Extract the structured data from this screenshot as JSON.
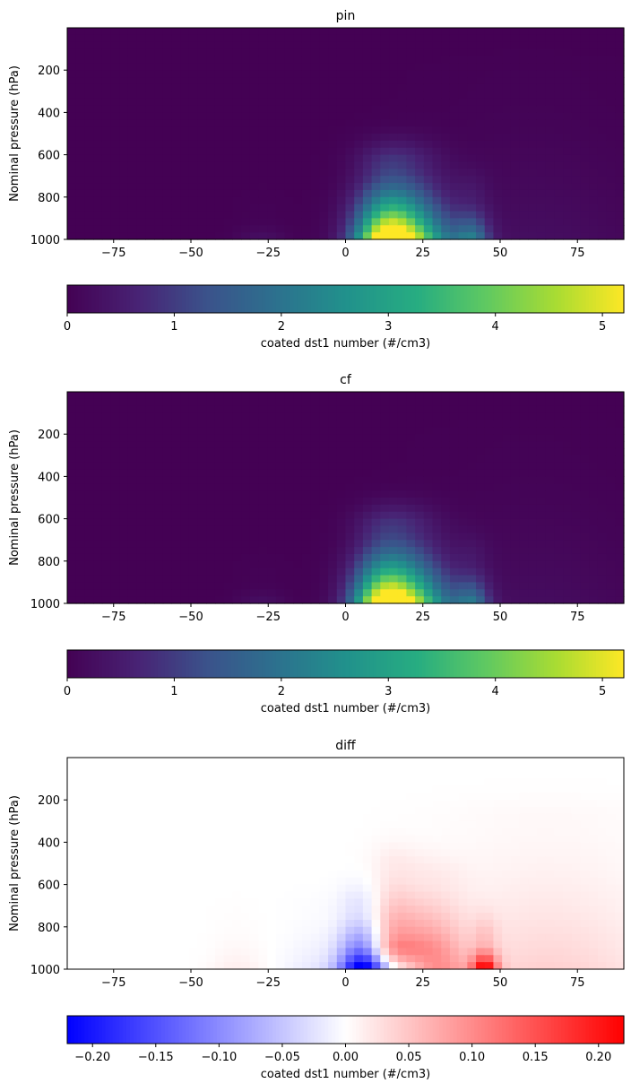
{
  "chart_data": [
    {
      "type": "heatmap",
      "title": "pin",
      "ylabel": "Nominal pressure (hPa)",
      "xlabel": "",
      "xlim": [
        -90,
        90
      ],
      "ylim": [
        1000,
        0
      ],
      "xticks": [
        -75,
        -50,
        -25,
        0,
        25,
        50,
        75
      ],
      "yticks": [
        200,
        400,
        600,
        800,
        1000
      ],
      "colormap": "viridis",
      "colorbar": {
        "label": "coated dst1 number (#/cm3)",
        "range": [
          0,
          5.2
        ],
        "ticks": [
          0,
          1,
          2,
          3,
          4,
          5
        ],
        "orientation": "horizontal"
      },
      "features": [
        {
          "lat": 17,
          "p_top": 650,
          "p_bottom": 1000,
          "lat_width": 9,
          "peak": 5.2
        },
        {
          "lat": 12,
          "p_top": 700,
          "p_bottom": 1000,
          "lat_width": 6,
          "peak": 2.0
        },
        {
          "lat": 41,
          "p_top": 800,
          "p_bottom": 1000,
          "lat_width": 4,
          "peak": 1.8
        },
        {
          "lat": 30,
          "p_top": 750,
          "p_bottom": 1000,
          "lat_width": 8,
          "peak": 0.8
        },
        {
          "lat": -27,
          "p_top": 900,
          "p_bottom": 1000,
          "lat_width": 6,
          "peak": 0.3
        },
        {
          "lat": 60,
          "p_top": 250,
          "p_bottom": 1000,
          "lat_width": 25,
          "peak": 0.25
        }
      ]
    },
    {
      "type": "heatmap",
      "title": "cf",
      "ylabel": "Nominal pressure (hPa)",
      "xlabel": "",
      "xlim": [
        -90,
        90
      ],
      "ylim": [
        1000,
        0
      ],
      "xticks": [
        -75,
        -50,
        -25,
        0,
        25,
        50,
        75
      ],
      "yticks": [
        200,
        400,
        600,
        800,
        1000
      ],
      "colormap": "viridis",
      "colorbar": {
        "label": "coated dst1 number (#/cm3)",
        "range": [
          0,
          5.2
        ],
        "ticks": [
          0,
          1,
          2,
          3,
          4,
          5
        ],
        "orientation": "horizontal"
      },
      "features": [
        {
          "lat": 17,
          "p_top": 650,
          "p_bottom": 1000,
          "lat_width": 9,
          "peak": 5.2
        },
        {
          "lat": 11,
          "p_top": 700,
          "p_bottom": 1000,
          "lat_width": 6,
          "peak": 2.1
        },
        {
          "lat": 41,
          "p_top": 800,
          "p_bottom": 1000,
          "lat_width": 4,
          "peak": 1.7
        },
        {
          "lat": 30,
          "p_top": 750,
          "p_bottom": 1000,
          "lat_width": 8,
          "peak": 0.75
        },
        {
          "lat": -27,
          "p_top": 900,
          "p_bottom": 1000,
          "lat_width": 6,
          "peak": 0.3
        },
        {
          "lat": 60,
          "p_top": 250,
          "p_bottom": 1000,
          "lat_width": 25,
          "peak": 0.22
        }
      ]
    },
    {
      "type": "heatmap",
      "title": "diff",
      "ylabel": "Nominal pressure (hPa)",
      "xlabel": "",
      "xlim": [
        -90,
        90
      ],
      "ylim": [
        1000,
        0
      ],
      "xticks": [
        -75,
        -50,
        -25,
        0,
        25,
        50,
        75
      ],
      "yticks": [
        200,
        400,
        600,
        800,
        1000
      ],
      "colormap": "bwr",
      "colorbar": {
        "label": "coated dst1 number (#/cm3)",
        "range": [
          -0.22,
          0.22
        ],
        "ticks": [
          -0.2,
          -0.15,
          -0.1,
          -0.05,
          0.0,
          0.05,
          0.1,
          0.15,
          0.2
        ],
        "tick_labels": [
          "−0.20",
          "−0.15",
          "−0.10",
          "−0.05",
          "0.00",
          "0.05",
          "0.10",
          "0.15",
          "0.20"
        ],
        "orientation": "horizontal"
      },
      "features": [
        {
          "lat": 5,
          "p_top": 720,
          "p_bottom": 1000,
          "lat_width": 5,
          "peak": -0.19
        },
        {
          "lat": 14,
          "p_top": 880,
          "p_bottom": 1000,
          "lat_width": 8,
          "peak": -0.14
        },
        {
          "lat": 15,
          "p_top": 520,
          "p_bottom": 900,
          "lat_width": 5,
          "peak": 0.1
        },
        {
          "lat": 24,
          "p_top": 560,
          "p_bottom": 900,
          "lat_width": 6,
          "peak": 0.08
        },
        {
          "lat": 45,
          "p_top": 870,
          "p_bottom": 1000,
          "lat_width": 3,
          "peak": 0.22
        },
        {
          "lat": 33,
          "p_top": 600,
          "p_bottom": 1000,
          "lat_width": 6,
          "peak": 0.06
        },
        {
          "lat": 65,
          "p_top": 300,
          "p_bottom": 1000,
          "lat_width": 25,
          "peak": 0.04
        },
        {
          "lat": -8,
          "p_top": 750,
          "p_bottom": 1000,
          "lat_width": 8,
          "peak": -0.02
        },
        {
          "lat": -35,
          "p_top": 800,
          "p_bottom": 1000,
          "lat_width": 6,
          "peak": 0.015
        }
      ]
    }
  ]
}
